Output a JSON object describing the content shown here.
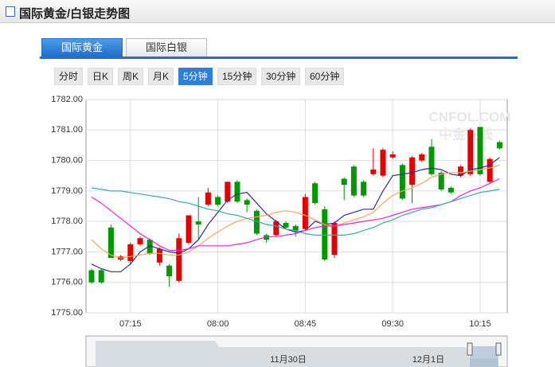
{
  "header": {
    "title": "国际黄金/白银走势图"
  },
  "tabs": {
    "items": [
      "国际黄金",
      "国际白银"
    ],
    "active_index": 0
  },
  "periods": {
    "items": [
      "分时",
      "日K",
      "周K",
      "月K",
      "5分钟",
      "15分钟",
      "30分钟",
      "60分钟"
    ],
    "active_index": 4
  },
  "watermark": {
    "site": "CNFOL.COM",
    "name": "中金在线"
  },
  "navigator": {
    "labels": [
      "11月30日",
      "12月1日"
    ]
  },
  "chart_data": {
    "type": "candlestick",
    "categories": [
      null,
      null,
      null,
      null,
      "07:15",
      null,
      null,
      null,
      null,
      null,
      null,
      null,
      null,
      "08:00",
      null,
      null,
      null,
      null,
      null,
      null,
      null,
      null,
      "08:45",
      null,
      null,
      null,
      null,
      null,
      null,
      null,
      null,
      "09:30",
      null,
      null,
      null,
      null,
      null,
      null,
      null,
      null,
      "10:15",
      null,
      null
    ],
    "open": [
      1776.4,
      1776.4,
      1777.8,
      1776.75,
      1776.7,
      1777.25,
      1777.4,
      1776.65,
      1776.55,
      1776.05,
      1777.3,
      1778.0,
      1778.55,
      1778.8,
      1778.65,
      1779.3,
      1778.7,
      1778.35,
      1777.55,
      1777.55,
      1777.95,
      1777.85,
      1777.75,
      1779.25,
      1778.4,
      1776.9,
      1779.4,
      1779.8,
      1779.3,
      1779.55,
      1779.5,
      1780.1,
      1779.85,
      1779.2,
      1780.0,
      1780.45,
      1779.6,
      1779.1,
      1779.5,
      1779.55,
      1781.1,
      1779.3,
      1780.6
    ],
    "high": [
      1776.45,
      1776.45,
      1777.9,
      1776.9,
      1777.3,
      1777.5,
      1777.45,
      1777.15,
      1776.6,
      1777.6,
      1778.2,
      1778.8,
      1779.1,
      1778.85,
      1779.3,
      1779.35,
      1778.75,
      1778.4,
      1777.6,
      1778.05,
      1778.0,
      1777.9,
      1778.9,
      1779.3,
      1778.5,
      1778.0,
      1779.45,
      1779.85,
      1779.35,
      1780.4,
      1780.4,
      1780.3,
      1779.9,
      1780.15,
      1780.25,
      1780.7,
      1779.65,
      1779.15,
      1779.85,
      1781.05,
      1781.1,
      1780.1,
      1780.65
    ],
    "low": [
      1775.95,
      1775.95,
      1776.8,
      1776.7,
      1776.6,
      1777.2,
      1776.9,
      1776.55,
      1775.85,
      1776.0,
      1777.25,
      1777.4,
      1778.5,
      1778.5,
      1778.6,
      1778.6,
      1778.3,
      1777.55,
      1777.3,
      1777.5,
      1777.75,
      1777.5,
      1777.7,
      1778.55,
      1776.7,
      1776.8,
      1778.7,
      1778.8,
      1778.8,
      1779.5,
      1779.45,
      1780.05,
      1778.7,
      1778.6,
      1779.95,
      1779.5,
      1779.0,
      1778.9,
      1779.45,
      1779.5,
      1779.5,
      1779.25,
      1780.35
    ],
    "close": [
      1776.0,
      1776.0,
      1776.8,
      1776.85,
      1777.25,
      1777.45,
      1776.95,
      1777.1,
      1776.2,
      1777.45,
      1778.2,
      1777.9,
      1778.95,
      1778.55,
      1779.3,
      1778.65,
      1778.55,
      1777.6,
      1777.4,
      1778.0,
      1777.8,
      1777.7,
      1778.8,
      1778.6,
      1776.75,
      1777.95,
      1779.2,
      1778.85,
      1778.85,
      1779.7,
      1780.35,
      1780.2,
      1778.75,
      1780.1,
      1780.2,
      1779.55,
      1779.05,
      1778.95,
      1779.8,
      1781.0,
      1779.55,
      1780.05,
      1780.4
    ],
    "up_color": "#e60000",
    "down_color": "#009a00",
    "series": [
      {
        "color": "#2b2f8f",
        "values": [
          1776.6,
          1776.45,
          1776.35,
          1776.35,
          1776.6,
          1777.0,
          1777.2,
          1777.1,
          1777.0,
          1776.95,
          1777.1,
          1777.4,
          1777.9,
          1778.3,
          1778.7,
          1778.9,
          1778.95,
          1778.6,
          1778.25,
          1778.0,
          1777.75,
          1777.65,
          1777.7,
          1778.0,
          1777.9,
          1777.95,
          1778.2,
          1778.3,
          1778.4,
          1778.4,
          1779.0,
          1779.5,
          1779.55,
          1779.6,
          1779.7,
          1779.75,
          1779.7,
          1779.55,
          1779.5,
          1779.7,
          1779.75,
          1779.85,
          1780.1
        ]
      },
      {
        "color": "#f5a65b",
        "values": [
          1777.4,
          1777.1,
          1776.9,
          1776.8,
          1776.85,
          1776.9,
          1776.95,
          1776.95,
          1776.9,
          1776.9,
          1777.0,
          1777.2,
          1777.45,
          1777.65,
          1777.85,
          1778.0,
          1778.1,
          1778.15,
          1778.2,
          1778.3,
          1778.35,
          1778.3,
          1778.2,
          1778.05,
          1777.9,
          1777.85,
          1777.95,
          1778.05,
          1778.15,
          1778.3,
          1778.6,
          1778.85,
          1779.0,
          1779.1,
          1779.25,
          1779.45,
          1779.55,
          1779.6,
          1779.6,
          1779.65,
          1779.7,
          1779.75,
          1779.85
        ]
      },
      {
        "color": "#ee22dd",
        "values": [
          1778.8,
          1778.6,
          1778.35,
          1778.1,
          1777.85,
          1777.6,
          1777.4,
          1777.2,
          1777.05,
          1777.05,
          1777.1,
          1777.2,
          1777.2,
          1777.2,
          1777.2,
          1777.25,
          1777.3,
          1777.4,
          1777.5,
          1777.5,
          1777.55,
          1777.6,
          1777.7,
          1777.8,
          1777.85,
          1777.85,
          1777.9,
          1777.95,
          1778.0,
          1778.05,
          1778.1,
          1778.2,
          1778.3,
          1778.4,
          1778.45,
          1778.5,
          1778.55,
          1778.65,
          1778.85,
          1779.0,
          1779.1,
          1779.25,
          1779.4
        ]
      },
      {
        "color": "#3aa8b0",
        "values": [
          1779.1,
          1779.05,
          1779.0,
          1779.0,
          1778.95,
          1778.9,
          1778.85,
          1778.8,
          1778.75,
          1778.65,
          1778.6,
          1778.5,
          1778.4,
          1778.35,
          1778.25,
          1778.2,
          1778.1,
          1778.0,
          1777.9,
          1777.85,
          1777.75,
          1777.7,
          1777.6,
          1777.55,
          1777.55,
          1777.55,
          1777.55,
          1777.6,
          1777.7,
          1777.8,
          1777.95,
          1778.05,
          1778.2,
          1778.3,
          1778.4,
          1778.45,
          1778.55,
          1778.65,
          1778.75,
          1778.85,
          1778.95,
          1779.0,
          1779.05
        ]
      }
    ],
    "ylim": [
      1775,
      1782
    ],
    "yticks": [
      {
        "value": 1775,
        "label": "1775.00"
      },
      {
        "value": 1776,
        "label": "1776.00"
      },
      {
        "value": 1777,
        "label": "1777.00"
      },
      {
        "value": 1778,
        "label": "1778.00"
      },
      {
        "value": 1779,
        "label": "1779.00"
      },
      {
        "value": 1780,
        "label": "1780.00"
      },
      {
        "value": 1781,
        "label": "1781.00"
      },
      {
        "value": 1782,
        "label": "1782.00"
      }
    ],
    "grid": true
  }
}
